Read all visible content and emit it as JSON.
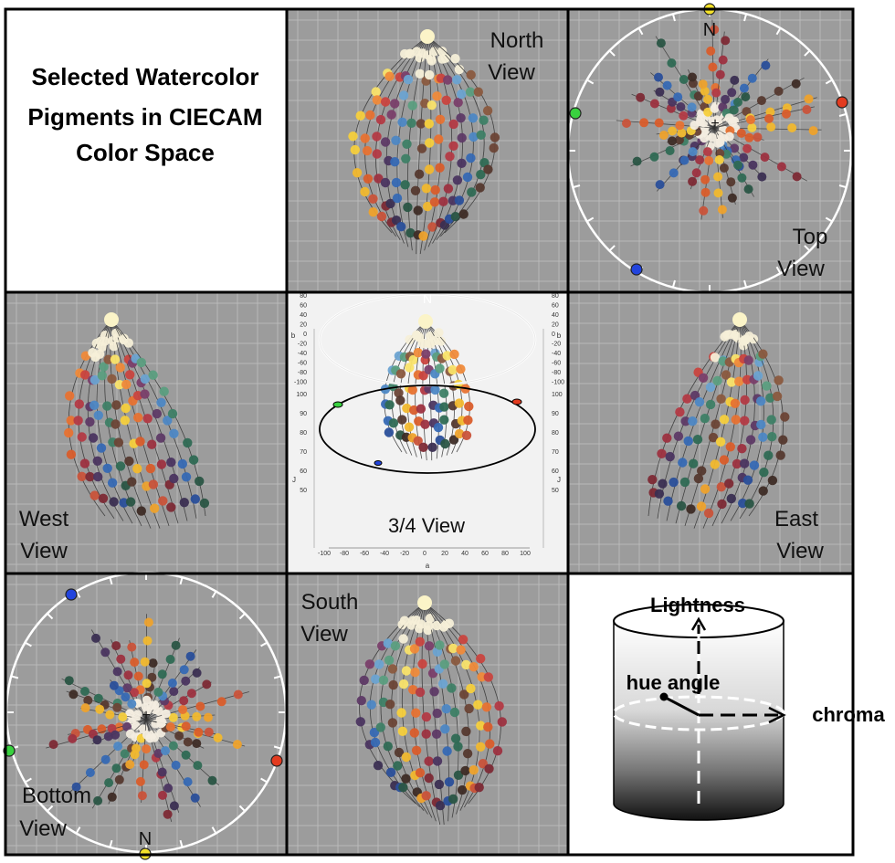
{
  "title_lines": [
    "Selected Watercolor",
    "Pigments in CIECAM",
    "Color Space"
  ],
  "panels": {
    "north": [
      "North",
      "View"
    ],
    "top": [
      "Top",
      "View"
    ],
    "west": [
      "West",
      "View"
    ],
    "three_quarter": "3/4 View",
    "east": [
      "East",
      "View"
    ],
    "bottom": [
      "Bottom",
      "View"
    ],
    "south": [
      "South",
      "View"
    ]
  },
  "compass_n": "N",
  "three_quarter_axes": {
    "a_label": "a",
    "b_label": "b",
    "j_label": "J",
    "n_label": "N",
    "a_ticks": [
      "-100",
      "-80",
      "-60",
      "-40",
      "-20",
      "0",
      "20",
      "40",
      "60",
      "80",
      "100"
    ],
    "b_ticks": [
      "80",
      "60",
      "40",
      "20",
      "0",
      "-20",
      "-40",
      "-60",
      "-80",
      "-100"
    ],
    "j_ticks": [
      "100",
      "90",
      "80",
      "70",
      "60",
      "50"
    ]
  },
  "legend": {
    "lightness": "Lightness",
    "hue_angle": "hue angle",
    "chroma": "chroma"
  },
  "colors": {
    "panel_bg": "#9c9c9c",
    "grid": "#b9b9b9",
    "marker_yellow": "#f4e22a",
    "marker_red": "#e33b1f",
    "marker_green": "#39d13f",
    "marker_blue": "#2244dd"
  }
}
